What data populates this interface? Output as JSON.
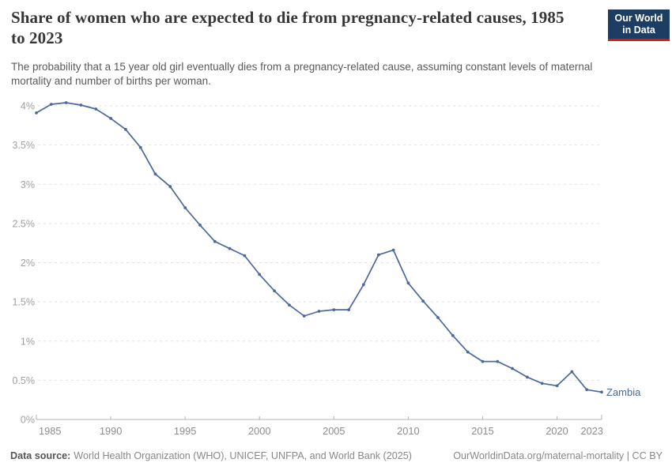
{
  "header": {
    "title": "Share of women who are expected to die from pregnancy-related causes, 1985 to 2023",
    "subtitle": "The probability that a 15 year old girl eventually dies from a pregnancy-related cause, assuming constant levels of maternal mortality and number of births per woman.",
    "logo": {
      "line1": "Our World",
      "line2": "in Data"
    }
  },
  "chart_data": {
    "type": "line",
    "title": "Share of women who are expected to die from pregnancy-related causes, 1985 to 2023",
    "xlabel": "",
    "ylabel": "",
    "xlim": [
      1985,
      2023
    ],
    "ylim": [
      0,
      4
    ],
    "grid": "horizontal dashed",
    "legend_position": "end-of-line label",
    "x_ticks": [
      1985,
      1990,
      1995,
      2000,
      2005,
      2010,
      2015,
      2020,
      2023
    ],
    "x_tick_labels": [
      "1985",
      "1990",
      "1995",
      "2000",
      "2005",
      "2010",
      "2015",
      "2020",
      "2023"
    ],
    "y_ticks": [
      0,
      0.5,
      1,
      1.5,
      2,
      2.5,
      3,
      3.5,
      4
    ],
    "y_tick_labels": [
      "0%",
      "0.5%",
      "1%",
      "1.5%",
      "2%",
      "2.5%",
      "3%",
      "3.5%",
      "4%"
    ],
    "x": [
      1985,
      1986,
      1987,
      1988,
      1989,
      1990,
      1991,
      1992,
      1993,
      1994,
      1995,
      1996,
      1997,
      1998,
      1999,
      2000,
      2001,
      2002,
      2003,
      2004,
      2005,
      2006,
      2007,
      2008,
      2009,
      2010,
      2011,
      2012,
      2013,
      2014,
      2015,
      2016,
      2017,
      2018,
      2019,
      2020,
      2021,
      2022,
      2023
    ],
    "series": [
      {
        "name": "Zambia",
        "color": "#4c699b",
        "values": [
          3.91,
          4.02,
          4.04,
          4.01,
          3.96,
          3.84,
          3.7,
          3.47,
          3.13,
          2.97,
          2.7,
          2.48,
          2.27,
          2.18,
          2.09,
          1.85,
          1.64,
          1.46,
          1.32,
          1.38,
          1.4,
          1.4,
          1.72,
          2.1,
          2.16,
          1.74,
          1.51,
          1.3,
          1.07,
          0.86,
          0.74,
          0.74,
          0.65,
          0.54,
          0.46,
          0.43,
          0.61,
          0.38,
          0.35
        ]
      }
    ]
  },
  "footer": {
    "source_label": "Data source:",
    "source_text": "World Health Organization (WHO), UNICEF, UNFPA, and World Bank (2025)",
    "rights": "OurWorldinData.org/maternal-mortality | CC BY"
  },
  "colors": {
    "line": "#4c699b",
    "gridline": "#e2e2e2",
    "axis": "#b3b3b3",
    "y_tick_label": "#a0a0a0",
    "x_tick_label": "#8c8c8c",
    "title": "#363636",
    "subtitle": "#595959",
    "footer_text": "#888888",
    "logo_background": "#1d3d63",
    "logo_stripe": "#e3120b"
  }
}
